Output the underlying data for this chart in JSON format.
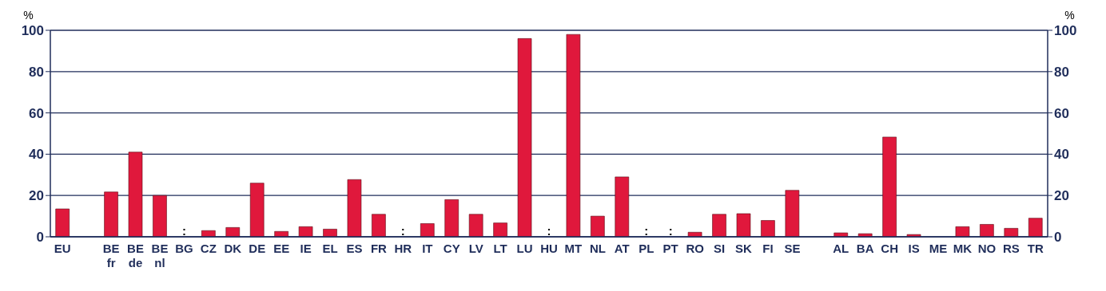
{
  "chart_data": {
    "type": "bar",
    "ylabel": "%",
    "y2label": "%",
    "categories": [
      "EU",
      null,
      "BE\nfr",
      "BE\nde",
      "BE\nnl",
      "BG",
      "CZ",
      "DK",
      "DE",
      "EE",
      "IE",
      "EL",
      "ES",
      "FR",
      "HR",
      "IT",
      "CY",
      "LV",
      "LT",
      "LU",
      "HU",
      "MT",
      "NL",
      "AT",
      "PL",
      "PT",
      "RO",
      "SI",
      "SK",
      "FI",
      "SE",
      null,
      "AL",
      "BA",
      "CH",
      "IS",
      "ME",
      "MK",
      "NO",
      "RS",
      "TR"
    ],
    "values": [
      13.5,
      null,
      21.7,
      41,
      20,
      null,
      3,
      4.5,
      26,
      2.6,
      4.9,
      3.7,
      27.7,
      10.9,
      null,
      6.4,
      18,
      10.9,
      6.7,
      96,
      null,
      98,
      10,
      29,
      null,
      null,
      2.2,
      10.9,
      11.2,
      7.9,
      22.5,
      null,
      1.9,
      1.5,
      48.3,
      1.1,
      0,
      4.9,
      6,
      4.1,
      9
    ],
    "value_labels": [
      null,
      null,
      null,
      null,
      null,
      ":",
      null,
      null,
      null,
      null,
      null,
      null,
      null,
      null,
      ":",
      null,
      null,
      null,
      null,
      null,
      ":",
      null,
      null,
      null,
      ":",
      ":",
      null,
      null,
      null,
      null,
      null,
      null,
      null,
      null,
      null,
      null,
      null,
      null,
      null,
      null,
      null
    ],
    "color": "#e0183c",
    "ylim": [
      0,
      100
    ],
    "yticks": [
      0,
      20,
      40,
      60,
      80,
      100
    ],
    "y2lim": [
      0,
      100
    ],
    "y2ticks": [
      0,
      20,
      40,
      60,
      80,
      100
    ],
    "grid": "y"
  }
}
